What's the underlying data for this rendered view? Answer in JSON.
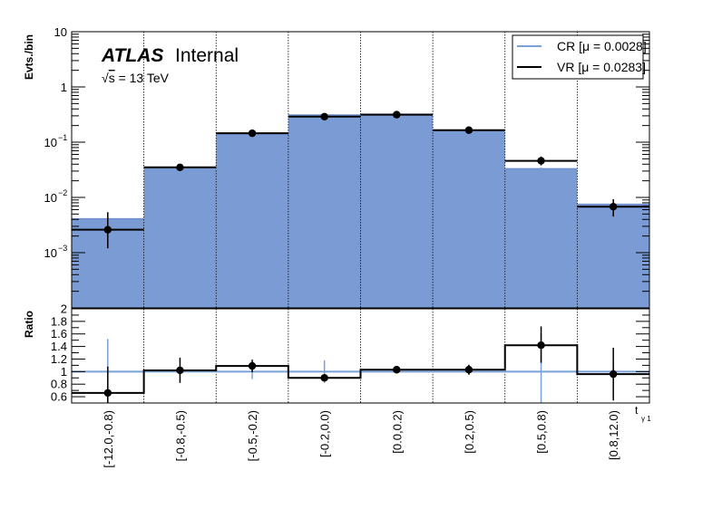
{
  "chart_data": {
    "type": "bar",
    "ylabel": "Evts./bin",
    "ratio_ylabel": "Ratio",
    "xlabel": "t",
    "xlabel_sub": "γ 1",
    "atlas_label": "ATLAS",
    "atlas_status": "Internal",
    "energy_label": "√s = 13 TeV",
    "energy_root_symbol": "√",
    "energy_root_arg": "s",
    "energy_rest": " = 13 TeV",
    "y_scale": "log",
    "ylim": [
      0.0001,
      10
    ],
    "y_tick_labels": [
      {
        "value": 10,
        "label": "10"
      },
      {
        "value": 1,
        "label": "1"
      },
      {
        "value": 0.1,
        "label": "10",
        "sup": "−1"
      },
      {
        "value": 0.01,
        "label": "10",
        "sup": "−2"
      },
      {
        "value": 0.001,
        "label": "10",
        "sup": "−3"
      }
    ],
    "ratio_ylim": [
      0.5,
      2.0
    ],
    "ratio_ticks": [
      "0.6",
      "0.8",
      "1",
      "1.2",
      "1.4",
      "1.6",
      "1.8",
      "2"
    ],
    "grid": "x-only-dotted",
    "legend_position": "top-right",
    "categories": [
      "[-12.0,-0.8)",
      "[-0.8,-0.5)",
      "[-0.5,-0.2)",
      "[-0.2,0.0)",
      "[0.0,0.2)",
      "[0.2,0.5)",
      "[0.5,0.8)",
      "[0.8,12.0)"
    ],
    "series": [
      {
        "name": "CR [μ = 0.0028]",
        "color": "#7a9bd4",
        "line_color": "#6f8fd0",
        "style": "filled",
        "values": [
          0.0041,
          0.034,
          0.14,
          0.31,
          0.32,
          0.16,
          0.033,
          0.0075
        ],
        "errors": [
          0.0012,
          0.002,
          0.005,
          0.008,
          0.008,
          0.005,
          0.002,
          0.001
        ]
      },
      {
        "name": "VR [μ = 0.0283]",
        "color": "#000000",
        "style": "points",
        "values": [
          0.0026,
          0.035,
          0.145,
          0.29,
          0.315,
          0.165,
          0.046,
          0.0068
        ],
        "errors_low": [
          0.0014,
          0.004,
          0.012,
          0.02,
          0.02,
          0.014,
          0.008,
          0.0023
        ],
        "errors_high": [
          0.0028,
          0.004,
          0.012,
          0.02,
          0.02,
          0.014,
          0.009,
          0.0025
        ]
      }
    ],
    "ratio": {
      "reference": 1.0,
      "values": [
        0.66,
        1.02,
        1.09,
        0.9,
        1.03,
        1.03,
        1.42,
        0.96
      ],
      "errors_low": [
        0.32,
        0.2,
        0.1,
        0.06,
        0.05,
        0.08,
        0.28,
        0.42
      ],
      "errors_high": [
        0.42,
        0.2,
        0.1,
        0.06,
        0.05,
        0.08,
        0.3,
        0.42
      ],
      "cr_errors": [
        0.52,
        0.06,
        0.12,
        0.18,
        0.03,
        0.04,
        0.6,
        0.14
      ]
    }
  }
}
